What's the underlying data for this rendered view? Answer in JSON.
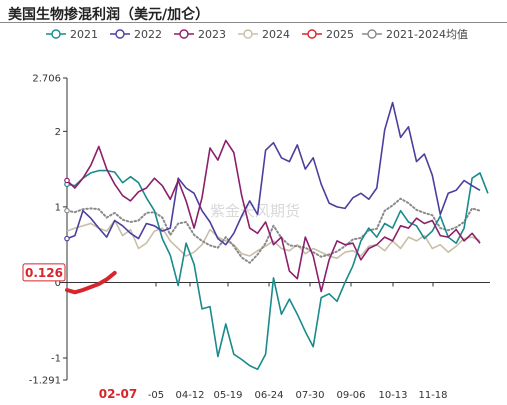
{
  "chart_data": {
    "type": "line",
    "title": "美国生物掺混利润（美元/加仑）",
    "ylim": [
      -1.291,
      2.706
    ],
    "y_ticks": [
      "2.706",
      "2",
      "1",
      "0",
      "-1",
      "-1.291"
    ],
    "x_ticks": [
      "-05",
      "04-12",
      "05-19",
      "06-24",
      "07-30",
      "09-06",
      "10-13",
      "11-18"
    ],
    "start_label": "02-07",
    "current_value_label": "0.126",
    "watermark": "紫金天风期货",
    "grid": false,
    "legend_position": "top",
    "colors": {
      "2021": "#1a8a8c",
      "2022": "#4b3f9e",
      "2023": "#8c1f6b",
      "2024": "#c9bfa6",
      "2025": "#d7262b",
      "avg": "#8a8a8a"
    },
    "series": [
      {
        "name": "2021",
        "key": "2021",
        "values": [
          1.3,
          1.28,
          1.38,
          1.45,
          1.48,
          1.48,
          1.46,
          1.32,
          1.4,
          1.32,
          1.12,
          0.95,
          0.58,
          0.36,
          -0.04,
          0.52,
          0.24,
          -0.35,
          -0.32,
          -0.98,
          -0.55,
          -0.95,
          -1.02,
          -1.1,
          -1.15,
          -0.95,
          0.06,
          -0.42,
          -0.22,
          -0.42,
          -0.65,
          -0.85,
          -0.2,
          -0.15,
          -0.25,
          0.0,
          0.22,
          0.55,
          0.72,
          0.6,
          0.78,
          0.72,
          0.95,
          0.8,
          0.75,
          0.58,
          0.68,
          0.88,
          0.6,
          0.52,
          0.72,
          1.38,
          1.45,
          1.18
        ]
      },
      {
        "name": "2022",
        "key": "2022",
        "values": [
          0.58,
          0.62,
          0.95,
          0.85,
          0.72,
          0.6,
          0.82,
          0.75,
          0.65,
          0.58,
          0.78,
          0.75,
          0.68,
          0.72,
          1.38,
          1.25,
          1.18,
          0.95,
          0.8,
          0.58,
          0.5,
          0.65,
          0.88,
          1.08,
          0.9,
          1.75,
          1.85,
          1.65,
          1.6,
          1.82,
          1.5,
          1.65,
          1.3,
          1.05,
          1.0,
          0.98,
          1.12,
          1.18,
          1.1,
          1.25,
          2.02,
          2.38,
          1.92,
          2.06,
          1.6,
          1.7,
          1.42,
          0.9,
          1.18,
          1.22,
          1.35,
          1.28,
          1.22
        ]
      },
      {
        "name": "2023",
        "key": "2023",
        "values": [
          1.35,
          1.25,
          1.38,
          1.55,
          1.8,
          1.5,
          1.3,
          1.15,
          1.08,
          1.2,
          1.25,
          1.38,
          1.28,
          1.1,
          1.35,
          1.08,
          0.72,
          1.12,
          1.78,
          1.62,
          1.88,
          1.72,
          1.15,
          0.72,
          0.65,
          0.8,
          0.5,
          0.6,
          0.15,
          0.05,
          0.6,
          0.35,
          -0.12,
          0.3,
          0.55,
          0.5,
          0.52,
          0.3,
          0.45,
          0.5,
          0.6,
          0.55,
          0.75,
          0.72,
          0.85,
          0.78,
          0.82,
          0.62,
          0.6,
          0.7,
          0.55,
          0.65,
          0.52
        ]
      },
      {
        "name": "2024",
        "key": "2024",
        "values": [
          0.68,
          0.72,
          0.75,
          0.78,
          0.72,
          0.68,
          0.82,
          0.62,
          0.7,
          0.45,
          0.52,
          0.68,
          0.72,
          0.55,
          0.45,
          0.35,
          0.4,
          0.5,
          0.7,
          0.6,
          0.55,
          0.5,
          0.38,
          0.35,
          0.42,
          0.48,
          0.55,
          0.45,
          0.42,
          0.5,
          0.38,
          0.45,
          0.4,
          0.35,
          0.32,
          0.4,
          0.42,
          0.35,
          0.48,
          0.5,
          0.42,
          0.55,
          0.45,
          0.6,
          0.55,
          0.62,
          0.45,
          0.5,
          0.4,
          0.48,
          0.58,
          0.6,
          0.55
        ]
      },
      {
        "name": "2025",
        "key": "2025",
        "values": [
          -0.1,
          -0.13,
          -0.1,
          -0.06,
          -0.02,
          0.04,
          0.126
        ]
      },
      {
        "name": "2021-2024均值",
        "key": "avg",
        "values": [
          0.95,
          0.93,
          0.97,
          0.98,
          0.97,
          0.86,
          0.92,
          0.83,
          0.8,
          0.82,
          0.92,
          0.93,
          0.86,
          0.63,
          0.78,
          0.8,
          0.63,
          0.55,
          0.49,
          0.46,
          0.6,
          0.48,
          0.33,
          0.26,
          0.37,
          0.52,
          0.75,
          0.59,
          0.49,
          0.48,
          0.46,
          0.4,
          0.34,
          0.37,
          0.41,
          0.48,
          0.57,
          0.59,
          0.69,
          0.71,
          0.95,
          1.02,
          1.11,
          1.05,
          0.96,
          0.92,
          0.89,
          0.72,
          0.69,
          0.73,
          0.8,
          0.98,
          0.95
        ]
      }
    ]
  }
}
